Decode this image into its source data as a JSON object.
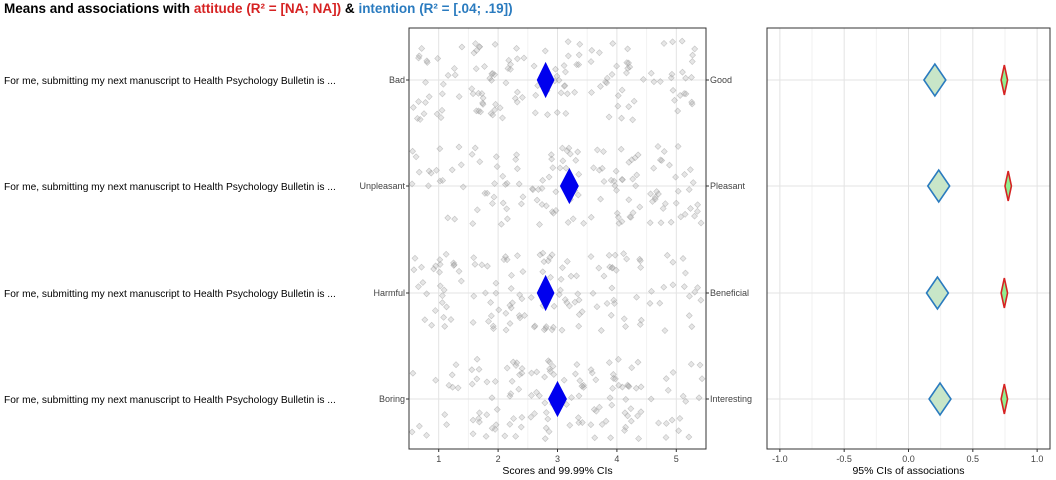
{
  "title": {
    "prefix": "Means and associations with ",
    "attitude_word": "attitude",
    "attitude_r2": " (R² = [NA; NA])",
    "amp": " & ",
    "intention_word": "intention",
    "intention_r2": " (R² = [.04; .19])"
  },
  "colors": {
    "attitude": "#d62222",
    "intention": "#2a7bbf",
    "mean_diamond": "#0000ee",
    "attitude_fill": "#90ee90",
    "intention_fill": "#c8e6c8",
    "jitter": "#9a9a9a"
  },
  "chart_data": [
    {
      "type": "scatter",
      "description": "Jittered individual scores with diamond-shaped means and 99.99% CIs",
      "xlabel": "Scores and 99.99% CIs",
      "xlim": [
        0.5,
        5.5
      ],
      "xticks": [
        1,
        2,
        3,
        4,
        5
      ],
      "grid": true,
      "items": [
        {
          "label": "For me, submitting my next manuscript to Health Psychology Bulletin is ...",
          "left_anchor": "Bad",
          "right_anchor": "Good",
          "mean": 2.8,
          "ci": [
            2.66,
            2.94
          ]
        },
        {
          "label": "For me, submitting my next manuscript to Health Psychology Bulletin is ...",
          "left_anchor": "Unpleasant",
          "right_anchor": "Pleasant",
          "mean": 3.2,
          "ci": [
            3.05,
            3.35
          ]
        },
        {
          "label": "For me, submitting my next manuscript to Health Psychology Bulletin is ...",
          "left_anchor": "Harmful",
          "right_anchor": "Beneficial",
          "mean": 2.8,
          "ci": [
            2.66,
            2.94
          ]
        },
        {
          "label": "For me, submitting my next manuscript to Health Psychology Bulletin is ...",
          "left_anchor": "Boring",
          "right_anchor": "Interesting",
          "mean": 3.0,
          "ci": [
            2.85,
            3.15
          ]
        }
      ]
    },
    {
      "type": "scatter",
      "description": "Diamond-shaped 95% confidence intervals of associations",
      "xlabel": "95% CIs of associations",
      "xlim": [
        -1.1,
        1.1
      ],
      "xticks": [
        -1.0,
        -0.5,
        0.0,
        0.5,
        1.0
      ],
      "xtick_labels": [
        "-1.0",
        "-0.5",
        "0.0",
        "0.5",
        "1.0"
      ],
      "grid": true,
      "series": [
        {
          "name": "attitude",
          "points": [
            {
              "ci": [
                0.72,
                0.77
              ],
              "est": 0.745
            },
            {
              "ci": [
                0.75,
                0.8
              ],
              "est": 0.775
            },
            {
              "ci": [
                0.72,
                0.77
              ],
              "est": 0.745
            },
            {
              "ci": [
                0.72,
                0.77
              ],
              "est": 0.745
            }
          ]
        },
        {
          "name": "intention",
          "points": [
            {
              "ci": [
                0.12,
                0.29
              ],
              "est": 0.205
            },
            {
              "ci": [
                0.15,
                0.32
              ],
              "est": 0.235
            },
            {
              "ci": [
                0.14,
                0.31
              ],
              "est": 0.225
            },
            {
              "ci": [
                0.16,
                0.33
              ],
              "est": 0.245
            }
          ]
        }
      ]
    }
  ]
}
